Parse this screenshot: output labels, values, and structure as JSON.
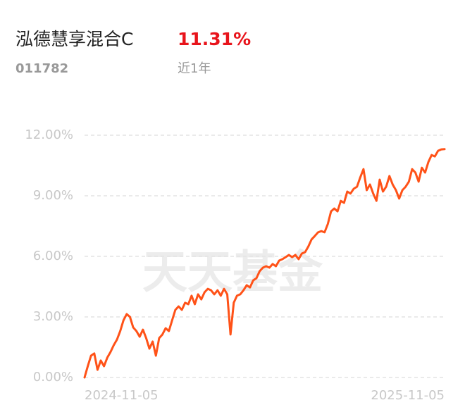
{
  "header": {
    "title": "泓德慧享混合C",
    "return": "11.31%",
    "code": "011782",
    "period": "近1年"
  },
  "watermark": "天天基金",
  "chart_data": {
    "type": "line",
    "categories": [
      "2024-11-05",
      null,
      null,
      null,
      null,
      null,
      null,
      null,
      null,
      null,
      null,
      null,
      null,
      null,
      null,
      null,
      null,
      null,
      null,
      null,
      null,
      null,
      null,
      null,
      null,
      null,
      null,
      null,
      null,
      null,
      null,
      null,
      null,
      null,
      null,
      null,
      null,
      null,
      null,
      null,
      null,
      null,
      null,
      null,
      null,
      null,
      null,
      null,
      null,
      null,
      null,
      null,
      null,
      null,
      null,
      null,
      null,
      null,
      null,
      null,
      null,
      null,
      null,
      null,
      null,
      null,
      null,
      null,
      null,
      null,
      null,
      null,
      null,
      null,
      null,
      null,
      null,
      null,
      null,
      null,
      null,
      null,
      null,
      null,
      null,
      null,
      null,
      null,
      null,
      null,
      null,
      null,
      null,
      null,
      null,
      null,
      null,
      null,
      null,
      null,
      null,
      null,
      null,
      null,
      null,
      null,
      null,
      null,
      null,
      null,
      null,
      "2025-11-05"
    ],
    "series": [
      {
        "color": "#ff5218",
        "values": [
          0,
          0.56,
          1.08,
          1.19,
          0.38,
          0.84,
          0.56,
          0.98,
          1.26,
          1.6,
          1.88,
          2.3,
          2.83,
          3.14,
          3.0,
          2.48,
          2.3,
          2.02,
          2.37,
          1.95,
          1.43,
          1.78,
          1.08,
          1.95,
          2.13,
          2.44,
          2.3,
          2.83,
          3.35,
          3.52,
          3.35,
          3.7,
          3.63,
          4.05,
          3.63,
          4.12,
          3.87,
          4.22,
          4.39,
          4.32,
          4.12,
          4.32,
          4.05,
          4.39,
          4.12,
          2.13,
          3.7,
          4.05,
          4.12,
          4.32,
          4.57,
          4.46,
          4.81,
          4.92,
          5.27,
          5.44,
          5.51,
          5.44,
          5.62,
          5.51,
          5.79,
          5.86,
          5.96,
          6.07,
          5.96,
          6.07,
          5.86,
          6.14,
          6.21,
          6.49,
          6.84,
          7.01,
          7.19,
          7.25,
          7.19,
          7.6,
          8.23,
          8.37,
          8.23,
          8.75,
          8.65,
          9.21,
          9.11,
          9.35,
          9.45,
          9.91,
          10.32,
          9.28,
          9.56,
          9.11,
          8.75,
          9.8,
          9.21,
          9.45,
          9.98,
          9.56,
          9.28,
          8.86,
          9.28,
          9.45,
          9.7,
          10.32,
          10.15,
          9.7,
          10.39,
          10.15,
          10.67,
          11.02,
          10.95,
          11.23,
          11.3,
          11.31
        ]
      }
    ],
    "ylim": [
      0,
      12
    ],
    "yticks": [
      {
        "value": 0,
        "label": "0.00%"
      },
      {
        "value": 3,
        "label": "3.00%"
      },
      {
        "value": 6,
        "label": "6.00%"
      },
      {
        "value": 9,
        "label": "9.00%"
      },
      {
        "value": 12,
        "label": "12.00%"
      }
    ],
    "grid": true
  }
}
